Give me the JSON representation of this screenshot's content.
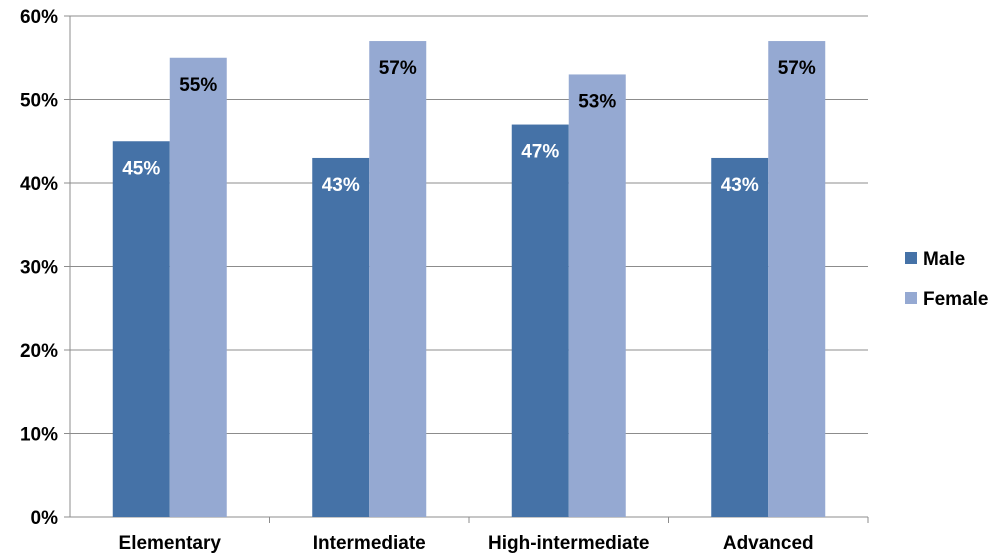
{
  "chart_data": {
    "type": "bar",
    "categories": [
      "Elementary",
      "Intermediate",
      "High-intermediate",
      "Advanced"
    ],
    "series": [
      {
        "name": "Male",
        "values": [
          45,
          43,
          47,
          43
        ],
        "color": "#4572A7"
      },
      {
        "name": "Female",
        "values": [
          55,
          57,
          53,
          57
        ],
        "color": "#95A9D2"
      }
    ],
    "ylim": [
      0,
      60
    ],
    "yticks": [
      0,
      10,
      20,
      30,
      40,
      50,
      60
    ],
    "unit": "%",
    "title": "",
    "xlabel": "",
    "ylabel": "",
    "grid": true,
    "legend_position": "right"
  }
}
